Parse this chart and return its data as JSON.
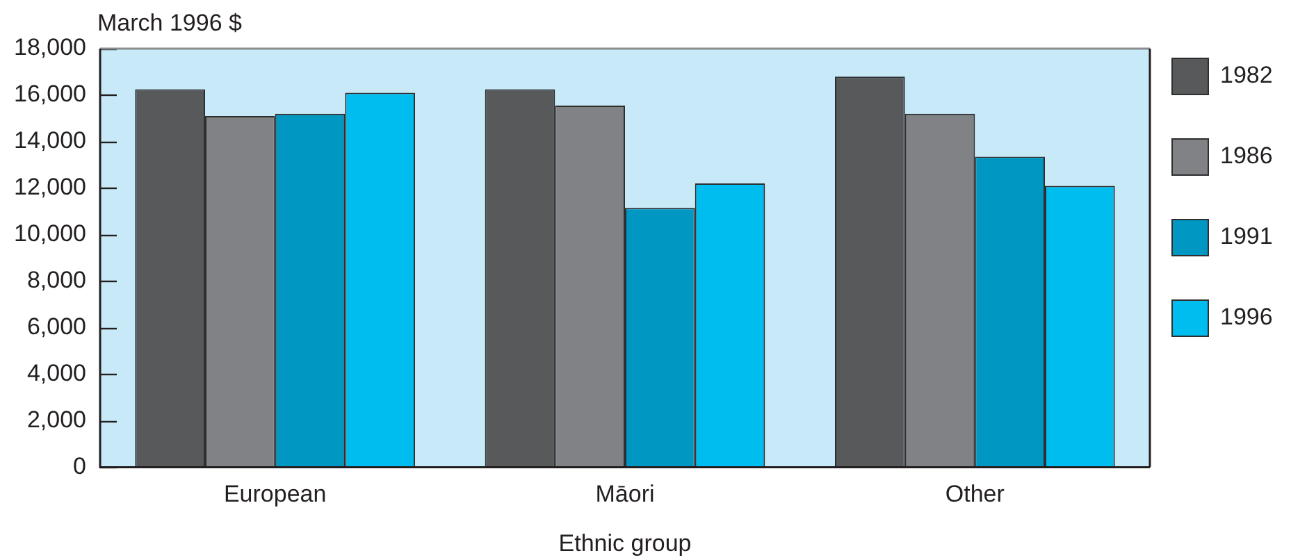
{
  "chart_data": {
    "type": "bar",
    "xlabel": "Ethnic group",
    "ylabel": "March 1996 $",
    "categories": [
      "European",
      "Māori",
      "Other"
    ],
    "series": [
      {
        "name": "1982",
        "color": "#58595b",
        "values": [
          16250,
          16250,
          16800
        ]
      },
      {
        "name": "1986",
        "color": "#808285",
        "values": [
          15100,
          15550,
          15200
        ]
      },
      {
        "name": "1991",
        "color": "#0098c3",
        "values": [
          15200,
          11150,
          13350
        ]
      },
      {
        "name": "1996",
        "color": "#00bdf0",
        "values": [
          16100,
          12200,
          12100
        ]
      }
    ],
    "ylim": [
      0,
      18000
    ],
    "yticks": [
      {
        "value": 0,
        "label": "0"
      },
      {
        "value": 2000,
        "label": "2,000"
      },
      {
        "value": 4000,
        "label": "4,000"
      },
      {
        "value": 6000,
        "label": "6,000"
      },
      {
        "value": 8000,
        "label": "8,000"
      },
      {
        "value": 10000,
        "label": "10,000"
      },
      {
        "value": 12000,
        "label": "12,000"
      },
      {
        "value": 14000,
        "label": "14,000"
      },
      {
        "value": 16000,
        "label": "16,000"
      },
      {
        "value": 18000,
        "label": "18,000"
      }
    ],
    "legend": "right"
  }
}
